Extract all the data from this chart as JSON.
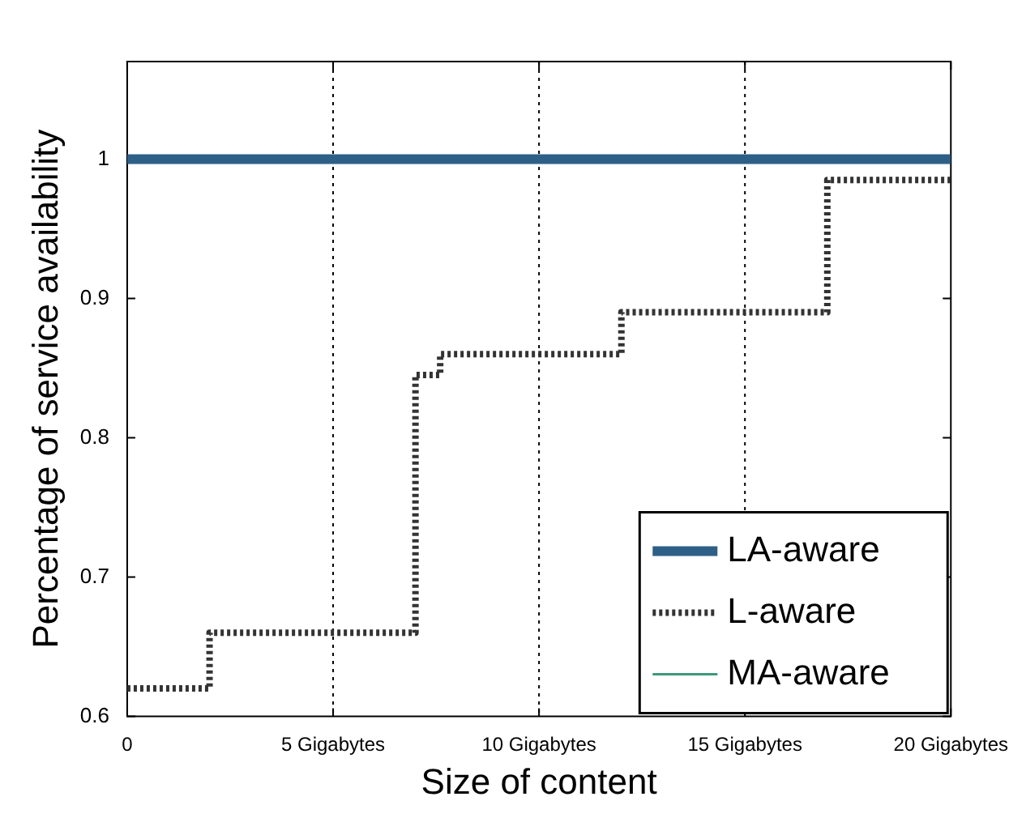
{
  "chart_data": {
    "type": "step",
    "xlabel": "Size of content",
    "ylabel": "Percentage of service availability",
    "xlim": [
      0,
      20
    ],
    "xticks": [
      0,
      {
        "value": 5,
        "label": "5 Gigabytes"
      },
      {
        "value": 10,
        "label": "10 Gigabytes"
      },
      {
        "value": 15,
        "label": "15 Gigabytes"
      },
      {
        "value": 20,
        "label": "20 Gigabytes"
      }
    ],
    "ylim": [
      0.6,
      1.07
    ],
    "yticks": [
      0.6,
      0.7,
      0.8,
      0.9,
      1
    ],
    "grid": "x",
    "legend": "bottom right",
    "series": [
      {
        "name": "LA-aware",
        "type": "line",
        "color": "#2e5f86",
        "line_style": "solid",
        "x": [
          0,
          20
        ],
        "values": [
          1,
          1
        ]
      },
      {
        "name": "L-aware",
        "color": "#333333",
        "line_style": "dotted",
        "x": [
          0,
          2,
          7,
          7.6,
          12,
          17,
          20
        ],
        "values": [
          0.62,
          0.66,
          0.845,
          0.86,
          0.89,
          0.985,
          0.985
        ]
      },
      {
        "name": "MA-aware",
        "type": "line",
        "color": "#3a9a7a",
        "line_style": "solid",
        "values": [
          null
        ]
      }
    ]
  }
}
